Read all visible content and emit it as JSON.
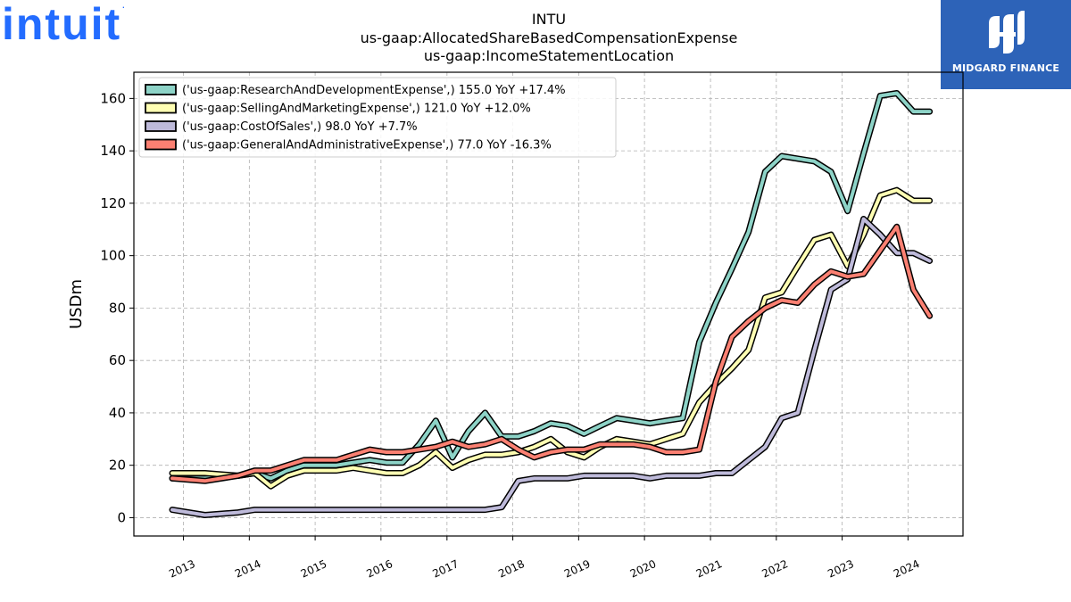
{
  "logos": {
    "left_text": "intuit",
    "left_mark": ".",
    "left_color": "#236cff",
    "right_text": "MIDGARD FINANCE",
    "right_bg": "#2d63b8"
  },
  "chart_data": {
    "type": "line",
    "title_lines": [
      "INTU",
      "us-gaap:AllocatedShareBasedCompensationExpense",
      "us-gaap:IncomeStatementLocation"
    ],
    "ylabel": "USDm",
    "xlabel": "",
    "xlim": [
      "2012-04-01",
      "2024-11-01"
    ],
    "ylim": [
      -7,
      170
    ],
    "yticks": [
      0,
      20,
      40,
      60,
      80,
      100,
      120,
      140,
      160
    ],
    "xticks": [
      "2013",
      "2014",
      "2015",
      "2016",
      "2017",
      "2018",
      "2019",
      "2020",
      "2021",
      "2022",
      "2023",
      "2024"
    ],
    "grid": true,
    "legend_position": "upper-left",
    "series": [
      {
        "name": "('us-gaap:ResearchAndDevelopmentExpense',) 155.0 YoY +17.4%",
        "color": "#8dd3c7",
        "x": [
          "2012-10-31",
          "2013-04-30",
          "2013-10-31",
          "2014-01-31",
          "2014-04-30",
          "2014-07-31",
          "2014-10-31",
          "2015-01-31",
          "2015-04-30",
          "2015-07-31",
          "2015-10-31",
          "2016-01-31",
          "2016-04-30",
          "2016-07-31",
          "2016-10-31",
          "2017-01-31",
          "2017-04-30",
          "2017-07-31",
          "2017-10-31",
          "2018-01-31",
          "2018-04-30",
          "2018-07-31",
          "2018-10-31",
          "2019-01-31",
          "2019-04-30",
          "2019-07-31",
          "2019-10-31",
          "2020-01-31",
          "2020-04-30",
          "2020-07-31",
          "2020-10-31",
          "2021-01-31",
          "2021-04-30",
          "2021-07-31",
          "2021-10-31",
          "2022-01-31",
          "2022-04-30",
          "2022-07-31",
          "2022-10-31",
          "2023-01-31",
          "2023-04-30",
          "2023-07-31",
          "2023-10-31",
          "2024-01-31",
          "2024-04-30"
        ],
        "values": [
          15,
          15,
          16,
          17,
          15,
          18,
          20,
          20,
          20,
          21,
          22,
          21,
          21,
          28,
          37,
          23,
          33,
          40,
          31,
          31,
          33,
          36,
          35,
          32,
          35,
          38,
          37,
          36,
          37,
          38,
          67,
          82,
          95,
          109,
          132,
          138,
          137,
          136,
          132,
          117,
          139,
          161,
          162,
          155,
          155
        ]
      },
      {
        "name": "('us-gaap:SellingAndMarketingExpense',) 121.0 YoY +12.0%",
        "color": "#ffffb3",
        "x": [
          "2012-10-31",
          "2013-04-30",
          "2013-10-31",
          "2014-01-31",
          "2014-04-30",
          "2014-07-31",
          "2014-10-31",
          "2015-01-31",
          "2015-04-30",
          "2015-07-31",
          "2015-10-31",
          "2016-01-31",
          "2016-04-30",
          "2016-07-31",
          "2016-10-31",
          "2017-01-31",
          "2017-04-30",
          "2017-07-31",
          "2017-10-31",
          "2018-01-31",
          "2018-04-30",
          "2018-07-31",
          "2018-10-31",
          "2019-01-31",
          "2019-04-30",
          "2019-07-31",
          "2019-10-31",
          "2020-01-31",
          "2020-04-30",
          "2020-07-31",
          "2020-10-31",
          "2021-01-31",
          "2021-04-30",
          "2021-07-31",
          "2021-10-31",
          "2022-01-31",
          "2022-04-30",
          "2022-07-31",
          "2022-10-31",
          "2023-01-31",
          "2023-04-30",
          "2023-07-31",
          "2023-10-31",
          "2024-01-31",
          "2024-04-30"
        ],
        "values": [
          17,
          17,
          16,
          17,
          12,
          16,
          18,
          18,
          18,
          19,
          18,
          17,
          17,
          20,
          25,
          19,
          22,
          24,
          24,
          25,
          27,
          30,
          25,
          23,
          27,
          30,
          29,
          28,
          30,
          32,
          44,
          51,
          57,
          64,
          84,
          86,
          96,
          106,
          108,
          96,
          108,
          123,
          125,
          121,
          121
        ]
      },
      {
        "name": "('us-gaap:CostOfSales',) 98.0 YoY +7.7%",
        "color": "#bebada",
        "x": [
          "2012-10-31",
          "2013-04-30",
          "2013-10-31",
          "2014-01-31",
          "2014-04-30",
          "2014-07-31",
          "2014-10-31",
          "2015-01-31",
          "2015-04-30",
          "2015-07-31",
          "2015-10-31",
          "2016-01-31",
          "2016-04-30",
          "2016-07-31",
          "2016-10-31",
          "2017-01-31",
          "2017-04-30",
          "2017-07-31",
          "2017-10-31",
          "2018-01-31",
          "2018-04-30",
          "2018-07-31",
          "2018-10-31",
          "2019-01-31",
          "2019-04-30",
          "2019-07-31",
          "2019-10-31",
          "2020-01-31",
          "2020-04-30",
          "2020-07-31",
          "2020-10-31",
          "2021-01-31",
          "2021-04-30",
          "2021-07-31",
          "2021-10-31",
          "2022-01-31",
          "2022-04-30",
          "2022-07-31",
          "2022-10-31",
          "2023-01-31",
          "2023-04-30",
          "2023-07-31",
          "2023-10-31",
          "2024-01-31",
          "2024-04-30"
        ],
        "values": [
          3,
          1,
          2,
          3,
          3,
          3,
          3,
          3,
          3,
          3,
          3,
          3,
          3,
          3,
          3,
          3,
          3,
          3,
          4,
          14,
          15,
          15,
          15,
          16,
          16,
          16,
          16,
          15,
          16,
          16,
          16,
          17,
          17,
          22,
          27,
          38,
          40,
          64,
          87,
          91,
          114,
          108,
          101,
          101,
          98
        ]
      },
      {
        "name": "('us-gaap:GeneralAndAdministrativeExpense',) 77.0 YoY -16.3%",
        "color": "#fb8072",
        "x": [
          "2012-10-31",
          "2013-04-30",
          "2013-10-31",
          "2014-01-31",
          "2014-04-30",
          "2014-07-31",
          "2014-10-31",
          "2015-01-31",
          "2015-04-30",
          "2015-07-31",
          "2015-10-31",
          "2016-01-31",
          "2016-04-30",
          "2016-07-31",
          "2016-10-31",
          "2017-01-31",
          "2017-04-30",
          "2017-07-31",
          "2017-10-31",
          "2018-01-31",
          "2018-04-30",
          "2018-07-31",
          "2018-10-31",
          "2019-01-31",
          "2019-04-30",
          "2019-07-31",
          "2019-10-31",
          "2020-01-31",
          "2020-04-30",
          "2020-07-31",
          "2020-10-31",
          "2021-01-31",
          "2021-04-30",
          "2021-07-31",
          "2021-10-31",
          "2022-01-31",
          "2022-04-30",
          "2022-07-31",
          "2022-10-31",
          "2023-01-31",
          "2023-04-30",
          "2023-07-31",
          "2023-10-31",
          "2024-01-31",
          "2024-04-30"
        ],
        "values": [
          15,
          14,
          16,
          18,
          18,
          20,
          22,
          22,
          22,
          24,
          26,
          25,
          25,
          26,
          27,
          29,
          27,
          28,
          30,
          26,
          23,
          25,
          26,
          26,
          28,
          28,
          28,
          27,
          25,
          25,
          26,
          52,
          69,
          75,
          80,
          83,
          82,
          89,
          94,
          92,
          93,
          102,
          111,
          87,
          77
        ]
      }
    ]
  }
}
